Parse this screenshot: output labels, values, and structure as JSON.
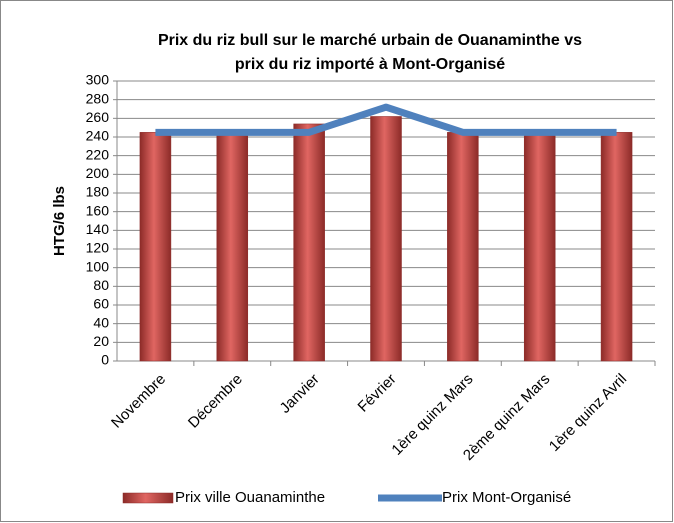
{
  "chart_data": {
    "type": "bar",
    "title": [
      "Prix du riz bull sur le marché urbain de Ouanaminthe  vs",
      "prix du riz importé à Mont-Organisé"
    ],
    "y_label": "HTG/6 lbs",
    "categories": [
      "Novembre",
      "Décembre",
      "Janvier",
      "Février",
      "1ère quinz Mars",
      "2ème quinz Mars",
      "1ère quinz Avril"
    ],
    "series": [
      {
        "name": "Prix ville Ouanaminthe",
        "type": "bar",
        "color": "#c0504d",
        "values": [
          245,
          242,
          254,
          262,
          245,
          242,
          245
        ]
      },
      {
        "name": "Prix Mont-Organisé",
        "type": "line",
        "color": "#4f81bd",
        "values": [
          245,
          245,
          245,
          272,
          245,
          245,
          245
        ]
      }
    ],
    "ylim": [
      0,
      300
    ],
    "yticks": [
      0,
      20,
      40,
      60,
      80,
      100,
      120,
      140,
      160,
      180,
      200,
      220,
      240,
      260,
      280,
      300
    ],
    "grid": true,
    "legend": "bottom"
  }
}
